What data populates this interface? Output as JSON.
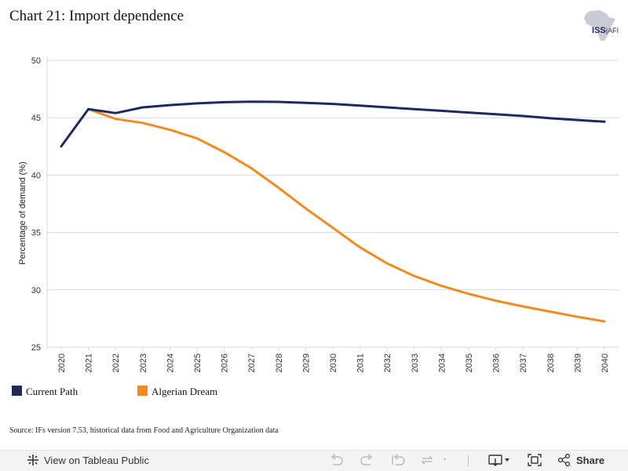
{
  "title": "Chart 21: Import dependence",
  "logo": {
    "text": "ISS",
    "sub": "AFI"
  },
  "legend": [
    {
      "label": "Current Path",
      "color": "#1d2a5c"
    },
    {
      "label": "Algerian Dream",
      "color": "#f28b1f"
    }
  ],
  "source": "Source: IFs version 7.53, historical data from Food and Agriculture Organization data",
  "toolbar": {
    "view_label": "View on Tableau Public",
    "share_label": "Share"
  },
  "chart_data": {
    "type": "line",
    "ylabel": "Percentage of demand (%)",
    "xlabel": "",
    "ylim": [
      25,
      50
    ],
    "yticks": [
      25,
      30,
      35,
      40,
      45,
      50
    ],
    "grid": true,
    "legend_position": "bottom-left",
    "x": [
      "2020",
      "2021",
      "2022",
      "2023",
      "2024",
      "2025",
      "2026",
      "2027",
      "2028",
      "2029",
      "2030",
      "2031",
      "2032",
      "2033",
      "2034",
      "2035",
      "2036",
      "2037",
      "2038",
      "2039",
      "2040"
    ],
    "series": [
      {
        "name": "Current Path",
        "color": "#1d2a5c",
        "values": [
          42.5,
          45.75,
          45.4,
          45.9,
          46.1,
          46.25,
          46.35,
          46.4,
          46.38,
          46.3,
          46.2,
          46.05,
          45.9,
          45.75,
          45.6,
          45.45,
          45.3,
          45.15,
          44.95,
          44.8,
          44.65
        ]
      },
      {
        "name": "Algerian Dream",
        "color": "#f28b1f",
        "values": [
          null,
          45.75,
          44.9,
          44.55,
          43.95,
          43.2,
          42.0,
          40.6,
          38.9,
          37.1,
          35.4,
          33.7,
          32.3,
          31.2,
          30.35,
          29.65,
          29.05,
          28.55,
          28.1,
          27.65,
          27.25
        ]
      }
    ]
  }
}
